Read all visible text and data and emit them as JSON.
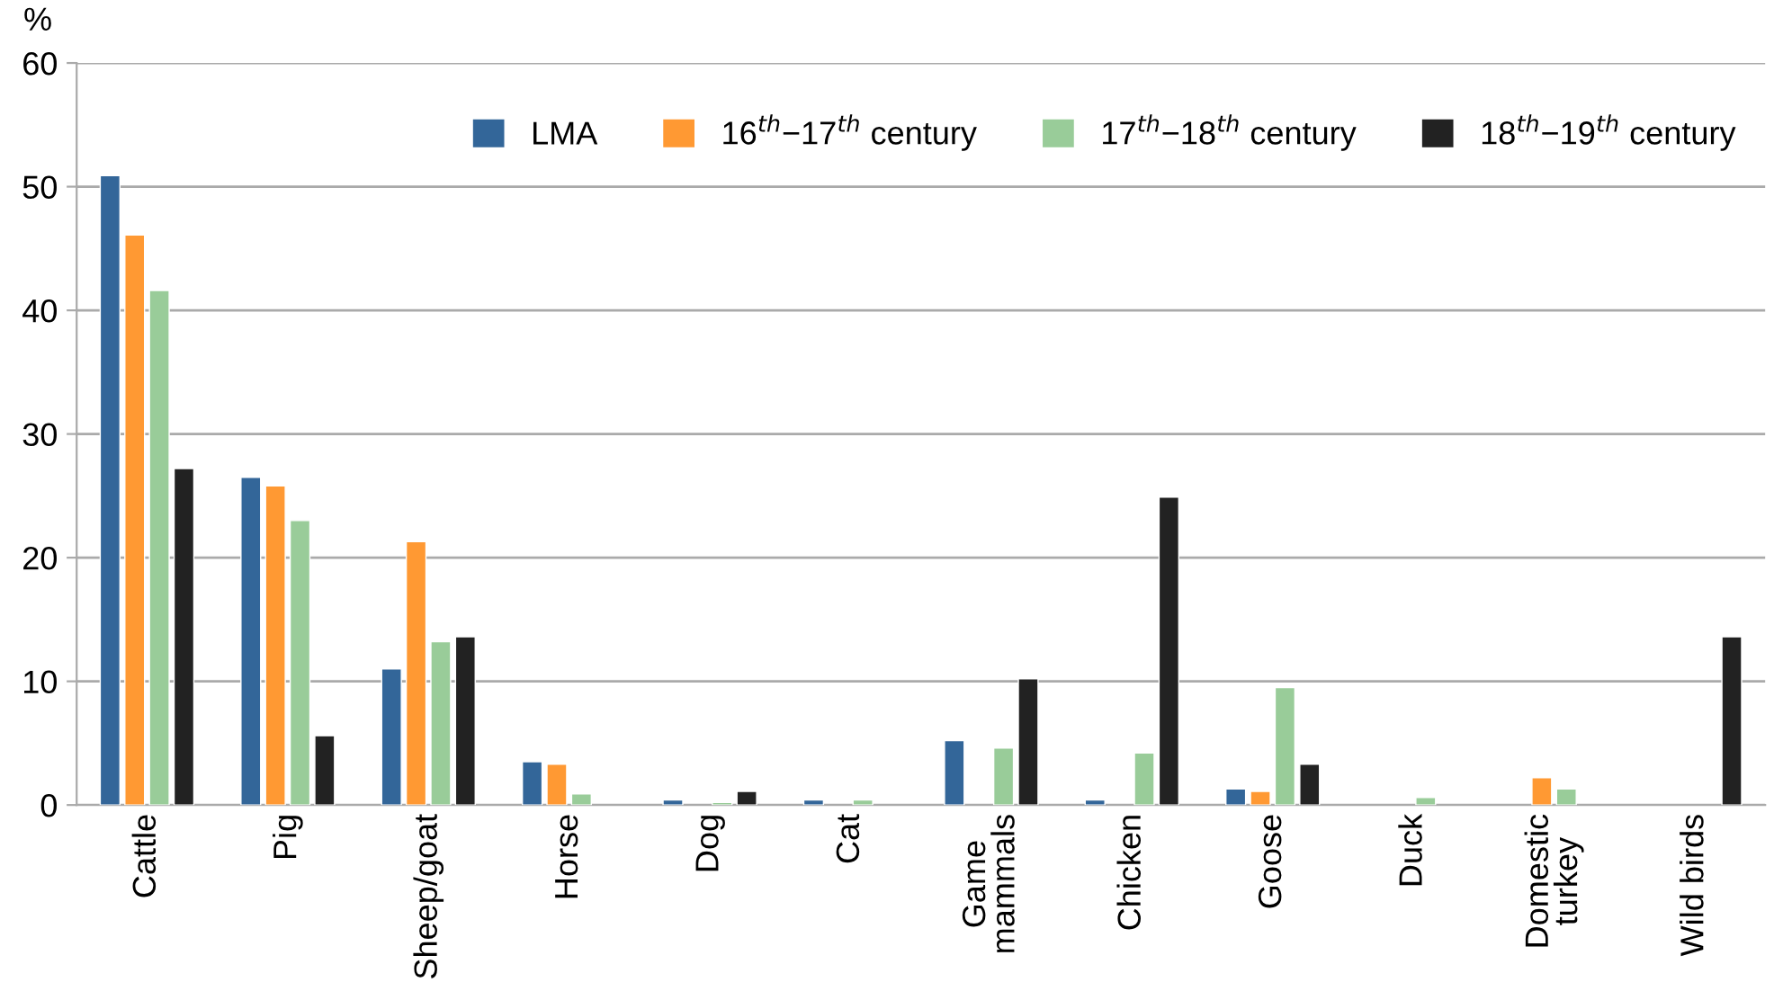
{
  "chart_data": {
    "type": "bar",
    "ylabel": "%",
    "categories": [
      "Cattle",
      "Pig",
      "Sheep/goat",
      "Horse",
      "Dog",
      "Cat",
      "Game\nmammals",
      "Chicken",
      "Goose",
      "Duck",
      "Domestic\nturkey",
      "Wild birds"
    ],
    "series": [
      {
        "name": "LMA",
        "color": "#336699",
        "values": [
          50.9,
          26.5,
          11.0,
          3.5,
          0.4,
          0.4,
          5.2,
          0.4,
          1.3,
          null,
          null,
          null
        ]
      },
      {
        "name": "16$^{th}$−17$^{th}$ century",
        "color": "#ff9933",
        "values": [
          46.1,
          25.8,
          21.3,
          3.3,
          null,
          null,
          null,
          null,
          1.1,
          null,
          2.2,
          null
        ]
      },
      {
        "name": "17$^{th}$−18$^{th}$ century",
        "color": "#99cc99",
        "values": [
          41.6,
          23.0,
          13.2,
          0.9,
          0.2,
          0.4,
          4.6,
          4.2,
          9.5,
          0.6,
          1.3,
          null
        ]
      },
      {
        "name": "18$^{th}$−19$^{th}$ century",
        "color": "#222222",
        "values": [
          27.2,
          5.6,
          13.6,
          null,
          1.1,
          null,
          10.2,
          24.9,
          3.3,
          null,
          null,
          13.6
        ]
      }
    ],
    "ylim": [
      0,
      60
    ],
    "yticks": [
      0,
      10,
      20,
      30,
      40,
      50,
      60
    ],
    "grid": "y",
    "legend": "top right"
  }
}
